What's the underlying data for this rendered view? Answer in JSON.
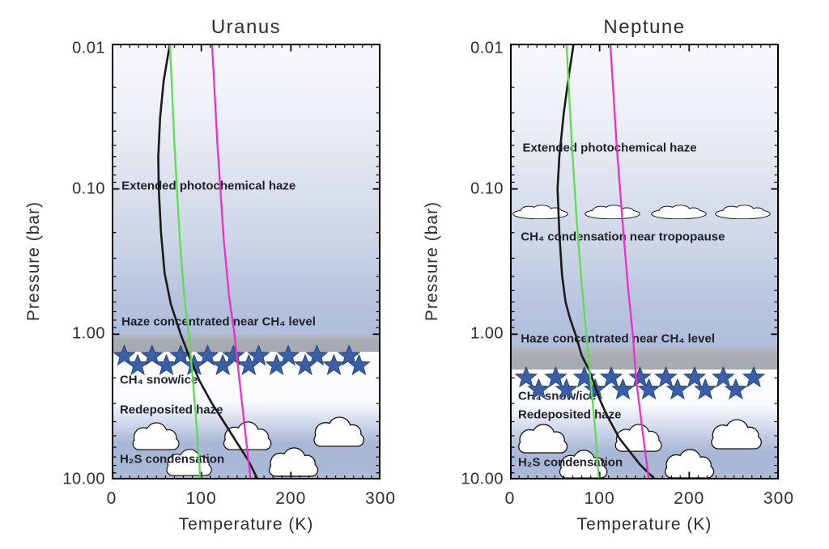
{
  "figure": {
    "background": "#ffffff",
    "x_axis": {
      "label": "Temperature (K)",
      "tick_labels": [
        "0",
        "100",
        "200",
        "300"
      ],
      "tick_values": [
        0,
        100,
        200,
        300
      ],
      "minor_step": 10,
      "range": [
        0,
        300
      ]
    },
    "y_axis": {
      "label": "Pressure (bar)",
      "tick_labels": [
        "0.01",
        "0.10",
        "1.00",
        "10.00"
      ],
      "tick_values": [
        0.01,
        0.1,
        1,
        10
      ],
      "scale": "log",
      "range": [
        0.01,
        10
      ]
    },
    "colors": {
      "frame": "#000000",
      "star": "#3b5fa6",
      "star_outline": "#2b4a7f",
      "gray_band": "#a7acb3",
      "bg_top": "#f8f9fc",
      "bg_blue": "#b4c1dd",
      "bg_lower_blue": "#a9b8d7",
      "cloud_fill": "#ffffff",
      "cloud_outline": "#141414",
      "profile_black": "#1a1a1a",
      "curve_green": "#5fdd4f",
      "curve_magenta": "#ea30c7"
    }
  },
  "chart_data": [
    {
      "type": "line",
      "title": "Uranus",
      "xlabel": "Temperature (K)",
      "ylabel": "Pressure (bar)",
      "xlim": [
        0,
        300
      ],
      "ylim": [
        0.01,
        10
      ],
      "yscale": "log-inverted",
      "grid": false,
      "legend": "none",
      "series": [
        {
          "name": "temperature-profile",
          "color": "#1a1a1a",
          "width": 2.6,
          "points": [
            [
              65,
              0.01
            ],
            [
              58,
              0.018
            ],
            [
              54,
              0.032
            ],
            [
              52,
              0.06
            ],
            [
              52.5,
              0.1
            ],
            [
              55,
              0.2
            ],
            [
              59,
              0.38
            ],
            [
              66,
              0.62
            ],
            [
              77,
              1.0
            ],
            [
              86,
              1.4
            ],
            [
              98,
              2.1
            ],
            [
              112,
              3.0
            ],
            [
              125,
              4.0
            ],
            [
              140,
              5.6
            ],
            [
              152,
              7.3
            ],
            [
              163,
              10
            ]
          ]
        },
        {
          "name": "green-curve",
          "color": "#5fdd4f",
          "width": 2.3,
          "points": [
            [
              65,
              0.01
            ],
            [
              70,
              0.05
            ],
            [
              76,
              0.22
            ],
            [
              81,
              0.55
            ],
            [
              86,
              1.0
            ],
            [
              91,
              2.2
            ],
            [
              95,
              4.5
            ],
            [
              99,
              10
            ]
          ]
        },
        {
          "name": "magenta-curve",
          "color": "#ea30c7",
          "width": 2.3,
          "points": [
            [
              112,
              0.01
            ],
            [
              118,
              0.05
            ],
            [
              125,
              0.22
            ],
            [
              131,
              0.55
            ],
            [
              137,
              1.0
            ],
            [
              143,
              2.2
            ],
            [
              149,
              4.7
            ],
            [
              155,
              10
            ]
          ]
        }
      ],
      "zones": {
        "gray_band_bar": [
          1.0,
          1.32
        ],
        "white_band_bar": [
          1.32,
          2.92
        ],
        "blue_full_bar": 5.6
      },
      "annotations": [
        {
          "text": "Extended photochemical haze",
          "t_k": 11,
          "p_bar": 0.095
        },
        {
          "text": "Haze concentrated near CH₄ level",
          "t_k": 11,
          "p_bar": 0.82
        },
        {
          "text": "CH₄ snow/ice",
          "t_k": 9,
          "p_bar": 2.06
        },
        {
          "text": "Redeposited haze",
          "t_k": 9,
          "p_bar": 3.32
        },
        {
          "text": "H₂S condensation",
          "t_k": 9,
          "p_bar": 7.3
        }
      ],
      "star_rows": [
        {
          "p_bar": 1.41,
          "t_values": [
            14,
            45,
            77,
            107,
            136,
            164,
            197,
            229,
            265
          ]
        },
        {
          "p_bar": 1.64,
          "t_values": [
            29,
            61,
            92,
            124,
            153,
            184,
            216,
            248,
            276
          ]
        }
      ],
      "clouds": [
        {
          "type": "puffy",
          "t_k": 49,
          "p_bar": 5.05,
          "w": 74
        },
        {
          "type": "puffy",
          "t_k": 151,
          "p_bar": 5.05,
          "w": 76
        },
        {
          "type": "puffy",
          "t_k": 253,
          "p_bar": 4.75,
          "w": 80
        },
        {
          "type": "puffy",
          "t_k": 86,
          "p_bar": 7.73,
          "w": 72
        },
        {
          "type": "puffy",
          "t_k": 202,
          "p_bar": 7.7,
          "w": 78
        }
      ]
    },
    {
      "type": "line",
      "title": "Neptune",
      "xlabel": "Temperature (K)",
      "ylabel": "Pressure (bar)",
      "xlim": [
        0,
        300
      ],
      "ylim": [
        0.01,
        10
      ],
      "yscale": "log-inverted",
      "grid": false,
      "legend": "none",
      "series": [
        {
          "name": "temperature-profile",
          "color": "#1a1a1a",
          "width": 2.6,
          "points": [
            [
              71,
              0.01
            ],
            [
              66,
              0.016
            ],
            [
              60,
              0.03
            ],
            [
              55,
              0.06
            ],
            [
              53,
              0.1
            ],
            [
              55,
              0.2
            ],
            [
              58,
              0.39
            ],
            [
              62,
              0.6
            ],
            [
              67,
              0.78
            ],
            [
              73,
              1.0
            ],
            [
              80,
              1.4
            ],
            [
              88,
              1.75
            ],
            [
              94,
              2.2
            ],
            [
              100,
              2.8
            ],
            [
              108,
              3.6
            ],
            [
              122,
              5.2
            ],
            [
              145,
              7.9
            ],
            [
              162,
              10
            ]
          ]
        },
        {
          "name": "green-curve",
          "color": "#5fdd4f",
          "width": 2.3,
          "points": [
            [
              63,
              0.01
            ],
            [
              69,
              0.05
            ],
            [
              74,
              0.15
            ],
            [
              80,
              0.45
            ],
            [
              85,
              1.0
            ],
            [
              90,
              2.1
            ],
            [
              95,
              4.5
            ],
            [
              99,
              10
            ]
          ]
        },
        {
          "name": "magenta-curve",
          "color": "#ea30c7",
          "width": 2.3,
          "points": [
            [
              112,
              0.01
            ],
            [
              119,
              0.05
            ],
            [
              126,
              0.18
            ],
            [
              132,
              0.5
            ],
            [
              137,
              1.0
            ],
            [
              141,
              2.1
            ],
            [
              148,
              4.7
            ],
            [
              155,
              10
            ]
          ]
        }
      ],
      "zones": {
        "gray_band_bar": [
          1.22,
          1.75
        ],
        "white_band_bar": [
          1.75,
          3.04
        ],
        "blue_full_bar": 6.38
      },
      "annotations": [
        {
          "text": "Extended photochemical haze",
          "t_k": 14,
          "p_bar": 0.052
        },
        {
          "text": "CH₄ condensation near tropopause",
          "t_k": 12,
          "p_bar": 0.213
        },
        {
          "text": "Haze concentrated near CH₄ level",
          "t_k": 12,
          "p_bar": 1.07
        },
        {
          "text": "CH₄ snow/ice",
          "t_k": 9,
          "p_bar": 2.67
        },
        {
          "text": "Redeposited haze",
          "t_k": 9,
          "p_bar": 3.6
        },
        {
          "text": "H₂S condensation",
          "t_k": 9,
          "p_bar": 7.6
        }
      ],
      "star_rows": [
        {
          "p_bar": 1.99,
          "t_values": [
            18,
            51,
            83,
            113,
            145,
            174,
            206,
            238,
            272
          ]
        },
        {
          "p_bar": 2.41,
          "t_values": [
            32,
            63,
            95,
            126,
            155,
            187,
            218,
            252
          ]
        }
      ],
      "clouds": [
        {
          "type": "flat",
          "t_k": 34,
          "p_bar": 0.144,
          "w": 77
        },
        {
          "type": "flat",
          "t_k": 114,
          "p_bar": 0.144,
          "w": 77
        },
        {
          "type": "flat",
          "t_k": 188,
          "p_bar": 0.144,
          "w": 77
        },
        {
          "type": "flat",
          "t_k": 260,
          "p_bar": 0.144,
          "w": 77
        },
        {
          "type": "puffy",
          "t_k": 36,
          "p_bar": 5.27,
          "w": 78
        },
        {
          "type": "puffy",
          "t_k": 143,
          "p_bar": 5.2,
          "w": 74
        },
        {
          "type": "puffy",
          "t_k": 252,
          "p_bar": 4.9,
          "w": 80
        },
        {
          "type": "puffy",
          "t_k": 81,
          "p_bar": 7.94,
          "w": 76
        },
        {
          "type": "puffy",
          "t_k": 200,
          "p_bar": 7.9,
          "w": 78
        }
      ]
    }
  ]
}
